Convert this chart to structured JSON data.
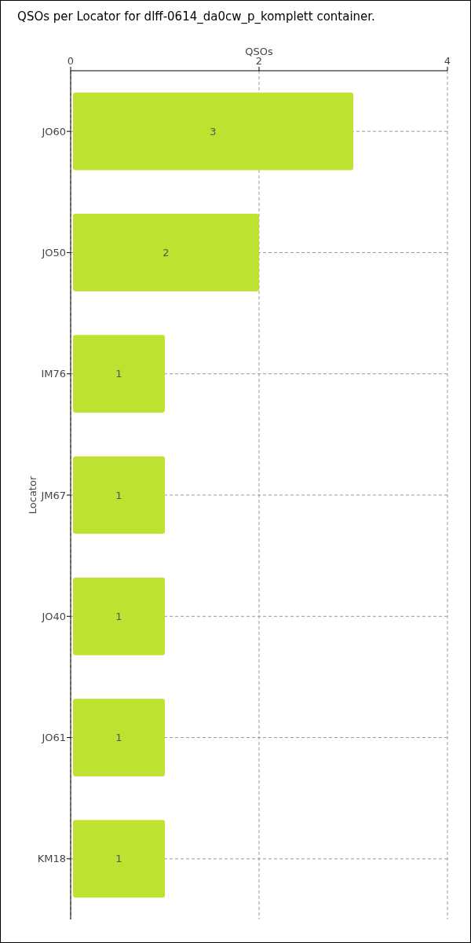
{
  "chart_data": {
    "type": "bar",
    "orientation": "horizontal",
    "title": "QSOs per Locator for dlff-0614_da0cw_p_komplett container.",
    "xlabel": "QSOs",
    "ylabel": "Locator",
    "categories": [
      "JO60",
      "JO50",
      "IM76",
      "JM67",
      "JO40",
      "JO61",
      "KM18"
    ],
    "values": [
      3,
      2,
      1,
      1,
      1,
      1,
      1
    ],
    "color": "#bde22f",
    "xlim": [
      0,
      4
    ],
    "xticks": [
      0,
      2,
      4
    ],
    "grid": true,
    "data_labels": true
  }
}
